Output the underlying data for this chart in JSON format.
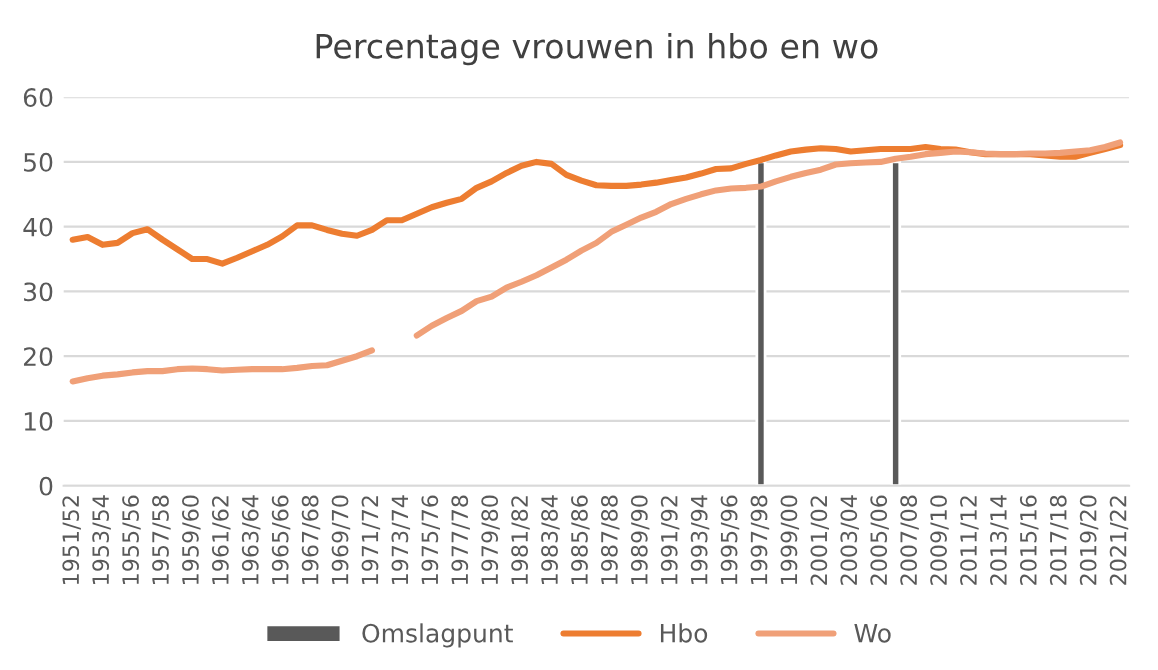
{
  "chart_data": {
    "type": "line",
    "title": "Percentage vrouwen in hbo en wo",
    "categories": [
      "1951/52",
      null,
      "1953/54",
      null,
      "1955/56",
      null,
      "1957/58",
      null,
      "1959/60",
      null,
      "1961/62",
      null,
      "1963/64",
      null,
      "1965/66",
      null,
      "1967/68",
      null,
      "1969/70",
      null,
      "1971/72",
      null,
      "1973/74",
      null,
      "1975/76",
      null,
      "1977/78",
      null,
      "1979/80",
      null,
      "1981/82",
      null,
      "1983/84",
      null,
      "1985/86",
      null,
      "1987/88",
      null,
      "1989/90",
      null,
      "1991/92",
      null,
      "1993/94",
      null,
      "1995/96",
      null,
      "1997/98",
      null,
      "1999/00",
      null,
      "2001/02",
      null,
      "2003/04",
      null,
      "2005/06",
      null,
      "2007/08",
      null,
      "2009/10",
      null,
      "2011/12",
      null,
      "2013/14",
      null,
      "2015/16",
      null,
      "2017/18",
      null,
      "2019/20",
      null,
      "2021/22"
    ],
    "series": [
      {
        "name": "Omslagpunt",
        "type": "bar",
        "color": "#595959",
        "values": [
          null,
          null,
          null,
          null,
          null,
          null,
          null,
          null,
          null,
          null,
          null,
          null,
          null,
          null,
          null,
          null,
          null,
          null,
          null,
          null,
          null,
          null,
          null,
          null,
          null,
          null,
          null,
          null,
          null,
          null,
          null,
          null,
          null,
          null,
          null,
          null,
          null,
          null,
          null,
          null,
          null,
          null,
          null,
          null,
          null,
          null,
          50,
          null,
          null,
          null,
          null,
          null,
          null,
          null,
          null,
          50,
          null,
          null,
          null,
          null,
          null,
          null,
          null,
          null,
          null,
          null,
          null,
          null,
          null,
          null,
          null
        ]
      },
      {
        "name": "Hbo",
        "color": "#ed7d31",
        "values": [
          38,
          38.4,
          37.2,
          37.5,
          39,
          39.6,
          38,
          36.5,
          35,
          35,
          34.3,
          35.2,
          36.2,
          37.2,
          38.5,
          40.2,
          40.2,
          39.5,
          38.9,
          38.6,
          39.5,
          41,
          41,
          42,
          43,
          43.7,
          44.3,
          46,
          47,
          48.3,
          49.4,
          50,
          49.7,
          48,
          47.1,
          46.4,
          46.3,
          46.3,
          46.5,
          46.8,
          47.2,
          47.6,
          48.2,
          48.9,
          49,
          49.7,
          50.3,
          51,
          51.6,
          51.9,
          52.1,
          52,
          51.6,
          51.8,
          52,
          52,
          52,
          52.3,
          52,
          51.9,
          51.5,
          51.2,
          51.2,
          51.2,
          51.2,
          51,
          50.8,
          50.8,
          51.4,
          52,
          52.6
        ]
      },
      {
        "name": "Wo",
        "color": "#f0a078",
        "values": [
          16.1,
          16.6,
          17,
          17.2,
          17.5,
          17.7,
          17.7,
          18,
          18.1,
          18,
          17.8,
          17.9,
          18,
          18,
          18,
          18.2,
          18.5,
          18.6,
          19.3,
          20,
          20.9,
          null,
          null,
          23.2,
          24.7,
          25.9,
          27,
          28.5,
          29.2,
          30.6,
          31.5,
          32.5,
          33.7,
          34.9,
          36.3,
          37.5,
          39.2,
          40.3,
          41.4,
          42.3,
          43.5,
          44.3,
          45,
          45.6,
          45.9,
          46,
          46.2,
          47,
          47.7,
          48.3,
          48.8,
          49.6,
          49.8,
          49.9,
          50,
          50.5,
          50.8,
          51.2,
          51.4,
          51.6,
          51.5,
          51.3,
          51.2,
          51.2,
          51.3,
          51.3,
          51.4,
          51.6,
          51.8,
          52.3,
          53
        ]
      }
    ],
    "ylim": [
      0,
      60
    ],
    "yticks": [
      0,
      10,
      20,
      30,
      40,
      50,
      60
    ],
    "grid": "y",
    "legend": "bottom"
  }
}
